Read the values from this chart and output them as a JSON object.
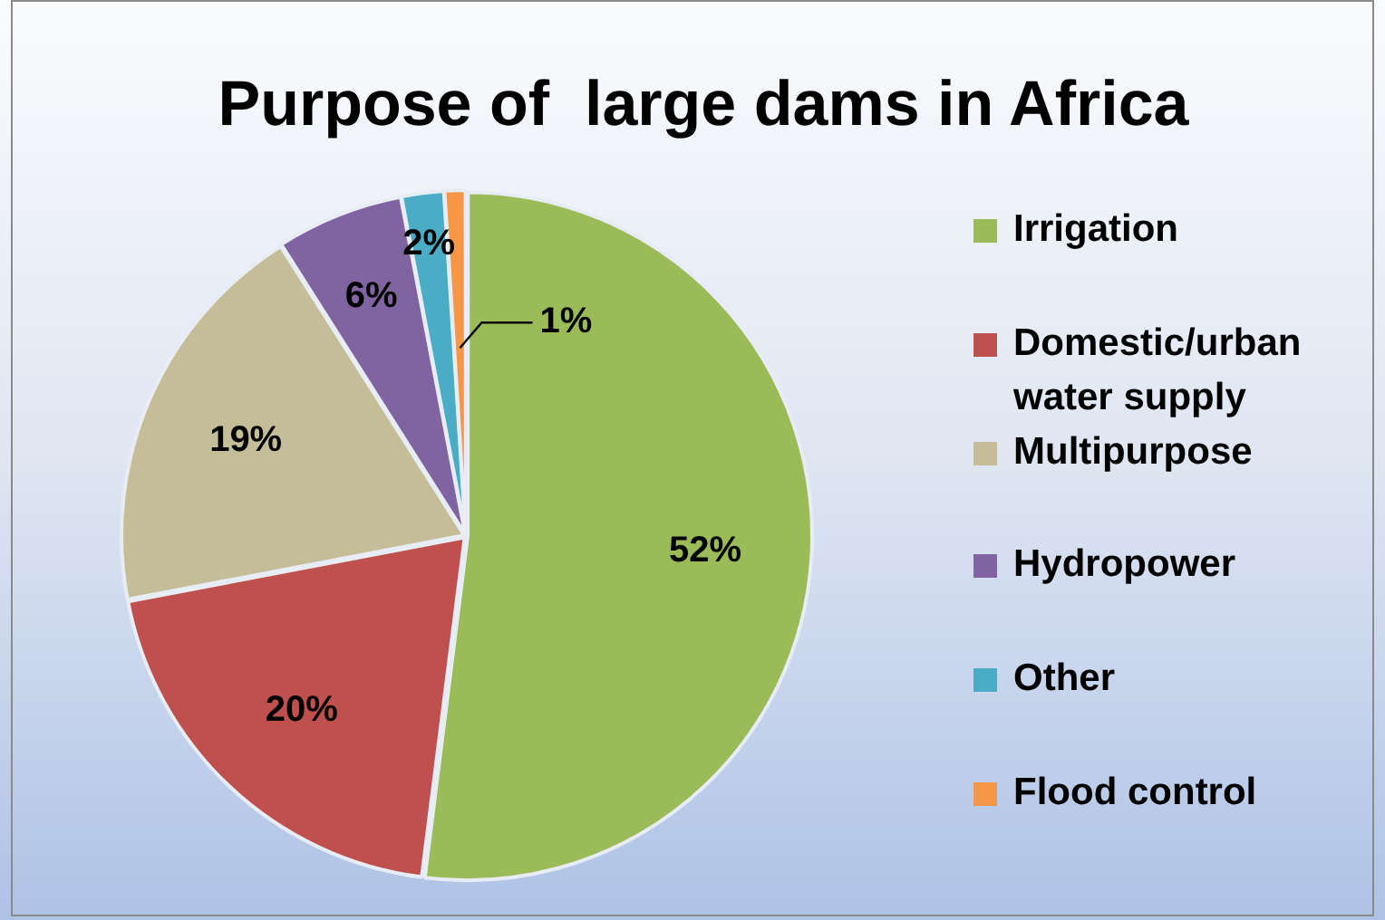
{
  "chart_data": {
    "type": "pie",
    "title": "Purpose of  large dams in Africa",
    "categories": [
      "Irrigation",
      "Domestic/urban water supply",
      "Multipurpose",
      "Hydropower",
      "Other",
      "Flood control"
    ],
    "values": [
      52,
      20,
      19,
      6,
      2,
      1
    ],
    "colors": [
      "#9bbb59",
      "#c0504d",
      "#c4bd97",
      "#8064a2",
      "#4bacc6",
      "#f79646"
    ],
    "value_labels": [
      "52%",
      "20%",
      "19%",
      "6%",
      "2%",
      "1%"
    ],
    "legend": "right"
  }
}
